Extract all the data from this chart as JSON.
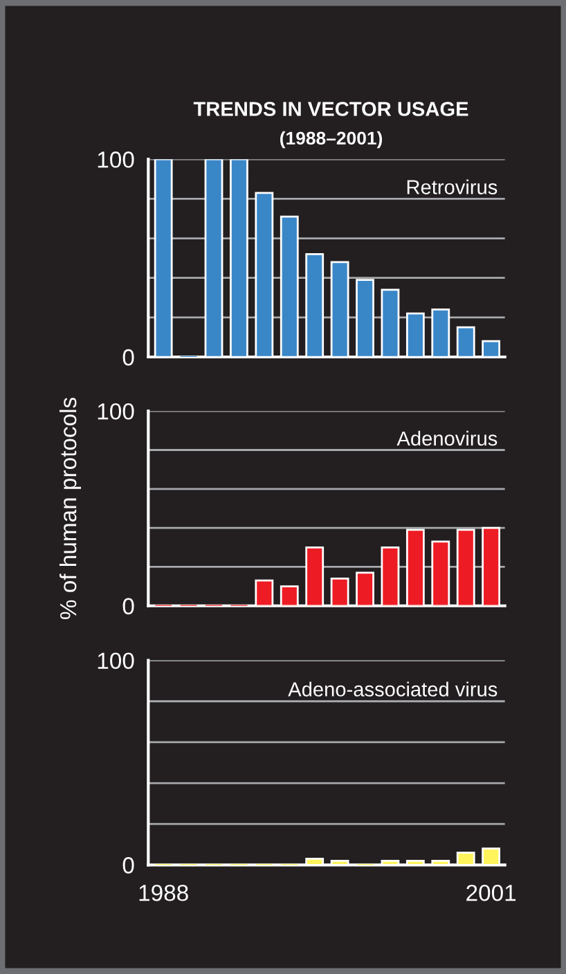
{
  "chart_data": [
    {
      "type": "bar",
      "title": "TRENDS IN VECTOR USAGE",
      "subtitle": "(1988–2001)",
      "categories": [
        "1988",
        null,
        null,
        null,
        null,
        null,
        null,
        null,
        null,
        null,
        null,
        null,
        null,
        "2001"
      ],
      "series": [
        {
          "name": "Retrovirus",
          "color": "#3a87c8",
          "values": [
            100,
            0,
            100,
            100,
            83,
            71,
            52,
            48,
            39,
            34,
            22,
            24,
            15,
            8
          ]
        }
      ],
      "ylim": [
        0,
        100
      ],
      "yticks": [
        0,
        {
          "value": 20,
          "label": null
        },
        {
          "value": 40,
          "label": null
        },
        {
          "value": 60,
          "label": null
        },
        {
          "value": 80,
          "label": null
        },
        100
      ],
      "grid": "y",
      "tick_labels": "y"
    },
    {
      "type": "bar",
      "ylabel": "% of human protocols",
      "categories": [
        "1988",
        null,
        null,
        null,
        null,
        null,
        null,
        null,
        null,
        null,
        null,
        null,
        null,
        "2001"
      ],
      "series": [
        {
          "name": "Adenovirus",
          "color": "#ed1c24",
          "values": [
            0,
            0,
            0,
            0,
            13,
            10,
            30,
            14,
            17,
            30,
            39,
            33,
            39,
            40
          ]
        }
      ],
      "ylim": [
        0,
        100
      ],
      "yticks": [
        0,
        {
          "value": 20,
          "label": null
        },
        {
          "value": 40,
          "label": null
        },
        {
          "value": 60,
          "label": null
        },
        {
          "value": 80,
          "label": null
        },
        100
      ],
      "grid": "y",
      "tick_labels": "y"
    },
    {
      "type": "bar",
      "categories": [
        "1988",
        null,
        null,
        null,
        null,
        null,
        null,
        null,
        null,
        null,
        null,
        null,
        null,
        "2001"
      ],
      "series": [
        {
          "name": "Adeno-associated virus",
          "color": "#fff45c",
          "values": [
            0,
            0,
            0,
            0,
            0,
            0,
            3,
            2,
            0,
            2,
            2,
            2,
            6,
            8
          ]
        }
      ],
      "ylim": [
        0,
        100
      ],
      "yticks": [
        0,
        {
          "value": 20,
          "label": null
        },
        {
          "value": 40,
          "label": null
        },
        {
          "value": 60,
          "label": null
        },
        {
          "value": 80,
          "label": null
        },
        100
      ],
      "grid": "y"
    }
  ]
}
